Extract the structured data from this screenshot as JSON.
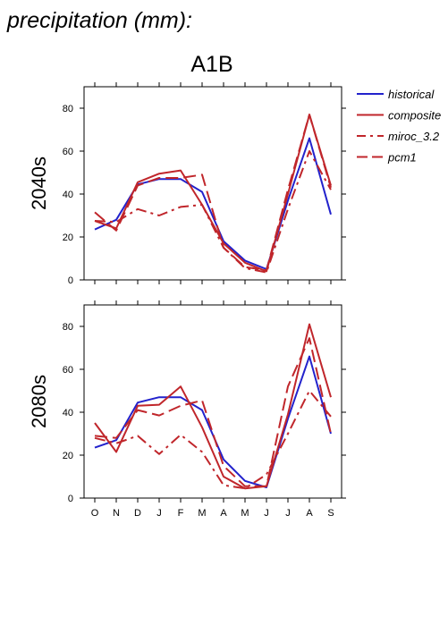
{
  "heading": "precipitation (mm):",
  "scenario": "A1B",
  "colors": {
    "historical": "#2222cc",
    "model": "#c0262b",
    "axis": "#000000"
  },
  "legend": [
    {
      "key": "historical",
      "label": "historical",
      "style": "solid",
      "color": "#2222cc"
    },
    {
      "key": "composite",
      "label": "composite",
      "style": "solid",
      "color": "#c0262b"
    },
    {
      "key": "miroc",
      "label": "miroc_3.2",
      "style": "dashdot",
      "color": "#c0262b"
    },
    {
      "key": "pcm1",
      "label": "pcm1",
      "style": "dash",
      "color": "#c0262b"
    }
  ],
  "chart_data": [
    {
      "type": "line",
      "row_label": "2040s",
      "categories": [
        "O",
        "N",
        "D",
        "J",
        "F",
        "M",
        "A",
        "M",
        "J",
        "J",
        "A",
        "S"
      ],
      "ylim": [
        0,
        90
      ],
      "yticks": [
        0,
        20,
        40,
        60,
        80
      ],
      "grid": false,
      "series": [
        {
          "name": "historical",
          "values": [
            23.5,
            28,
            44.5,
            47,
            47,
            41,
            18,
            9,
            5,
            37,
            66,
            30.5
          ]
        },
        {
          "name": "composite",
          "values": [
            27.5,
            24,
            45.5,
            49.5,
            51,
            35,
            17,
            8,
            4,
            40,
            77,
            44
          ]
        },
        {
          "name": "miroc_3.2",
          "values": [
            27.5,
            27,
            33,
            30,
            34,
            35,
            15,
            5.5,
            3.5,
            33,
            60,
            42
          ]
        },
        {
          "name": "pcm1",
          "values": [
            31.5,
            23,
            44,
            47.5,
            47.5,
            49,
            15,
            6,
            4.5,
            42,
            77,
            43
          ]
        }
      ]
    },
    {
      "type": "line",
      "row_label": "2080s",
      "categories": [
        "O",
        "N",
        "D",
        "J",
        "F",
        "M",
        "A",
        "M",
        "J",
        "J",
        "A",
        "S"
      ],
      "ylim": [
        0,
        90
      ],
      "yticks": [
        0,
        20,
        40,
        60,
        80
      ],
      "grid": false,
      "series": [
        {
          "name": "historical",
          "values": [
            23.5,
            27,
            44.5,
            47,
            47,
            41,
            18,
            8,
            5,
            37,
            66,
            30
          ]
        },
        {
          "name": "composite",
          "values": [
            35,
            21.5,
            43,
            43.5,
            52,
            33,
            10,
            4.5,
            5.5,
            39,
            81,
            47
          ]
        },
        {
          "name": "miroc_3.2",
          "values": [
            28,
            25.5,
            29,
            20.5,
            29.5,
            21.5,
            6,
            4.5,
            11,
            30,
            50,
            38
          ]
        },
        {
          "name": "pcm1",
          "values": [
            29,
            28,
            41,
            38.5,
            43,
            45.5,
            15,
            5.5,
            5.5,
            52,
            74.5,
            30
          ]
        }
      ]
    }
  ]
}
